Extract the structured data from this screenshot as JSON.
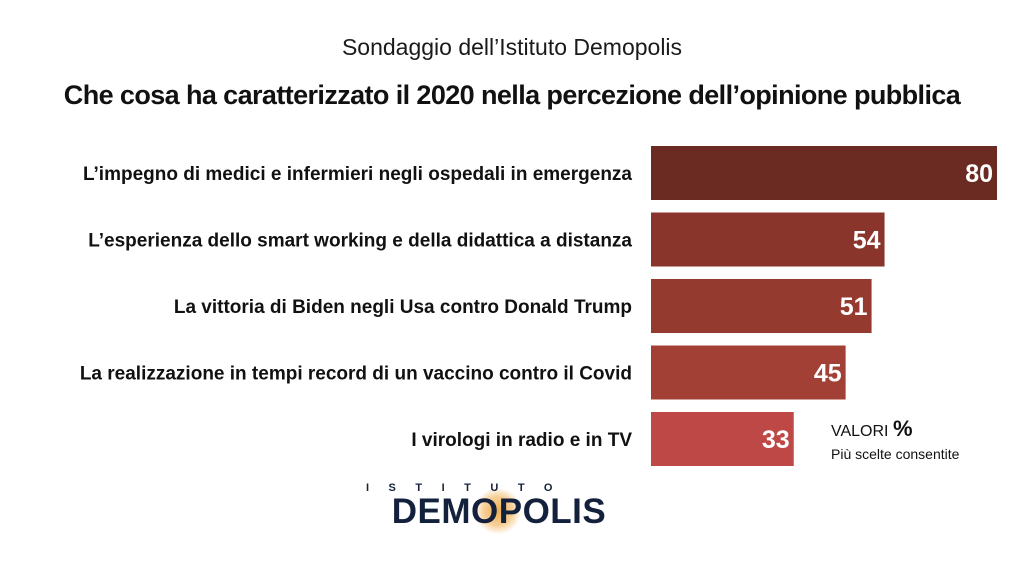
{
  "header": {
    "subtitle": "Sondaggio dell’Istituto Demopolis",
    "title": "Che cosa ha caratterizzato il 2020 nella percezione dell’opinione pubblica"
  },
  "chart_data": {
    "type": "bar",
    "orientation": "horizontal",
    "title": "Che cosa ha caratterizzato il 2020 nella percezione dell’opinione pubblica",
    "categories": [
      "L’impegno di medici e infermieri negli ospedali in emergenza",
      "L’esperienza dello smart working e della didattica a distanza",
      "La vittoria di Biden negli Usa contro Donald Trump",
      "La realizzazione in tempi record di un vaccino contro il Covid",
      "I virologi in radio e in TV"
    ],
    "values": [
      80,
      54,
      51,
      45,
      33
    ],
    "colors": [
      "#6b2a22",
      "#8a352b",
      "#953a2f",
      "#a34036",
      "#be4845"
    ],
    "xlim": [
      0,
      80
    ],
    "grid": false,
    "legend": "none"
  },
  "note": {
    "prefix": "VALORI",
    "symbol": "%",
    "line2": "Più scelte consentite"
  },
  "logo": {
    "top_text": "ISTITUTO",
    "main_text": "DEMOPOLIS",
    "colors": {
      "text": "#14213d",
      "glow": "#f0aa46"
    }
  }
}
